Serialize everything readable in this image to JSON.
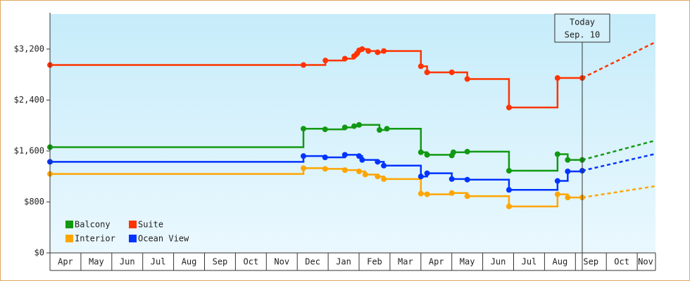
{
  "chart_data": {
    "type": "step-line",
    "xlim": [
      0,
      19.59
    ],
    "xticks": [
      {
        "value": 0.5,
        "label": "Apr"
      },
      {
        "value": 1.5,
        "label": "May"
      },
      {
        "value": 2.5,
        "label": "Jun"
      },
      {
        "value": 3.5,
        "label": "Jul"
      },
      {
        "value": 4.5,
        "label": "Aug"
      },
      {
        "value": 5.5,
        "label": "Sep"
      },
      {
        "value": 6.5,
        "label": "Oct"
      },
      {
        "value": 7.5,
        "label": "Nov"
      },
      {
        "value": 8.5,
        "label": "Dec"
      },
      {
        "value": 9.5,
        "label": "Jan"
      },
      {
        "value": 10.5,
        "label": "Feb"
      },
      {
        "value": 11.5,
        "label": "Mar"
      },
      {
        "value": 12.5,
        "label": "Apr"
      },
      {
        "value": 13.5,
        "label": "May"
      },
      {
        "value": 14.5,
        "label": "Jun"
      },
      {
        "value": 15.5,
        "label": "Jul"
      },
      {
        "value": 16.5,
        "label": "Aug"
      },
      {
        "value": 17.5,
        "label": "Sep"
      },
      {
        "value": 18.5,
        "label": "Oct"
      },
      {
        "value": 19.5,
        "label": "Nov"
      }
    ],
    "ylim": [
      0,
      3750
    ],
    "yticks": [
      {
        "value": 0,
        "label": "$0"
      },
      {
        "value": 800,
        "label": "$800"
      },
      {
        "value": 1600,
        "label": "$1,600"
      },
      {
        "value": 2400,
        "label": "$2,400"
      },
      {
        "value": 3200,
        "label": "$3,200"
      }
    ],
    "today": {
      "x": 17.22,
      "label": "Today",
      "date": "Sep. 10"
    },
    "series": [
      {
        "name": "Balcony",
        "color": "#119911",
        "x": [
          0,
          8.2,
          8.9,
          9.54,
          9.84,
          10.0,
          10.66,
          10.9,
          12.0,
          12.2,
          13.0,
          13.05,
          13.5,
          14.85,
          16.42,
          16.75,
          17.22
        ],
        "values": [
          1660,
          1950,
          1940,
          1970,
          1990,
          2010,
          1930,
          1950,
          1580,
          1540,
          1530,
          1580,
          1590,
          1290,
          1550,
          1460,
          1460
        ],
        "projected": 1765
      },
      {
        "name": "Suite",
        "color": "#ff3300",
        "x": [
          0,
          8.2,
          8.91,
          9.54,
          9.84,
          9.93,
          10.0,
          10.1,
          10.3,
          10.6,
          10.8,
          12.0,
          12.2,
          13.0,
          13.5,
          14.85,
          16.42,
          17.22
        ],
        "values": [
          2950,
          2950,
          3020,
          3050,
          3090,
          3130,
          3180,
          3200,
          3170,
          3150,
          3170,
          2930,
          2835,
          2835,
          2730,
          2283,
          2746,
          2746
        ],
        "projected": 3310
      },
      {
        "name": "Interior",
        "color": "#ffa500",
        "x": [
          0,
          8.2,
          8.9,
          9.54,
          10.0,
          10.2,
          10.6,
          10.8,
          12.0,
          12.2,
          13.0,
          13.5,
          14.85,
          16.42,
          16.75,
          17.22
        ],
        "values": [
          1240,
          1330,
          1320,
          1300,
          1280,
          1230,
          1200,
          1160,
          930,
          920,
          940,
          890,
          730,
          920,
          870,
          870
        ],
        "projected": 1048
      },
      {
        "name": "Ocean View",
        "color": "#0033ff",
        "x": [
          0,
          8.2,
          8.9,
          9.54,
          10.0,
          10.1,
          10.6,
          10.8,
          12.0,
          12.2,
          13.0,
          13.5,
          14.85,
          16.42,
          16.75,
          17.22
        ],
        "values": [
          1430,
          1520,
          1500,
          1540,
          1520,
          1460,
          1430,
          1370,
          1200,
          1250,
          1160,
          1150,
          990,
          1130,
          1280,
          1290
        ],
        "projected": 1555
      }
    ]
  }
}
